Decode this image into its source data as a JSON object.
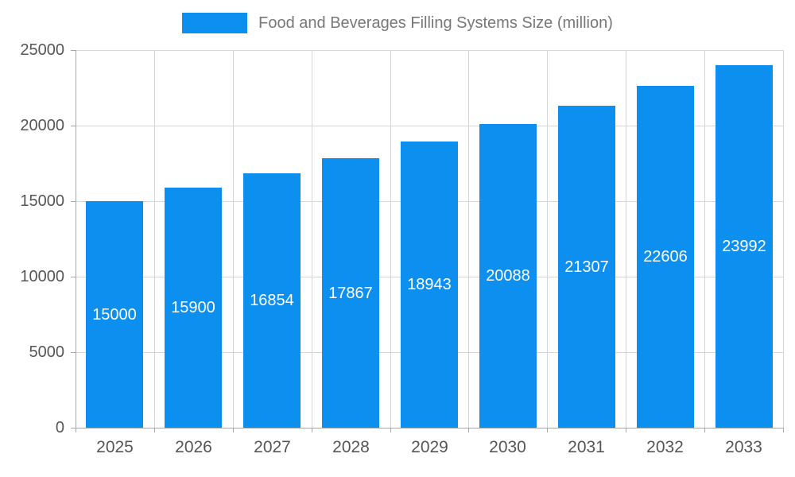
{
  "legend": {
    "label": "Food and Beverages Filling Systems Size (million)"
  },
  "chart_data": {
    "type": "bar",
    "title": "Food and Beverages Filling Systems Size (million)",
    "categories": [
      "2025",
      "2026",
      "2027",
      "2028",
      "2029",
      "2030",
      "2031",
      "2032",
      "2033"
    ],
    "values": [
      15000,
      15900,
      16854,
      17867,
      18943,
      20088,
      21307,
      22606,
      23992
    ],
    "xlabel": "",
    "ylabel": "",
    "ylim": [
      0,
      25000
    ],
    "ytick_step": 5000,
    "yticks": [
      0,
      5000,
      10000,
      15000,
      20000,
      25000
    ],
    "grid": true,
    "legend_position": "top",
    "bar_color": "#0d8ff0",
    "value_label_color": "#ffffff"
  },
  "colors": {
    "bar": "#0d8ff0",
    "grid": "#d6d6d6",
    "axis": "#a8a8a8",
    "tick_label": "#565656",
    "legend_text": "#787878"
  }
}
